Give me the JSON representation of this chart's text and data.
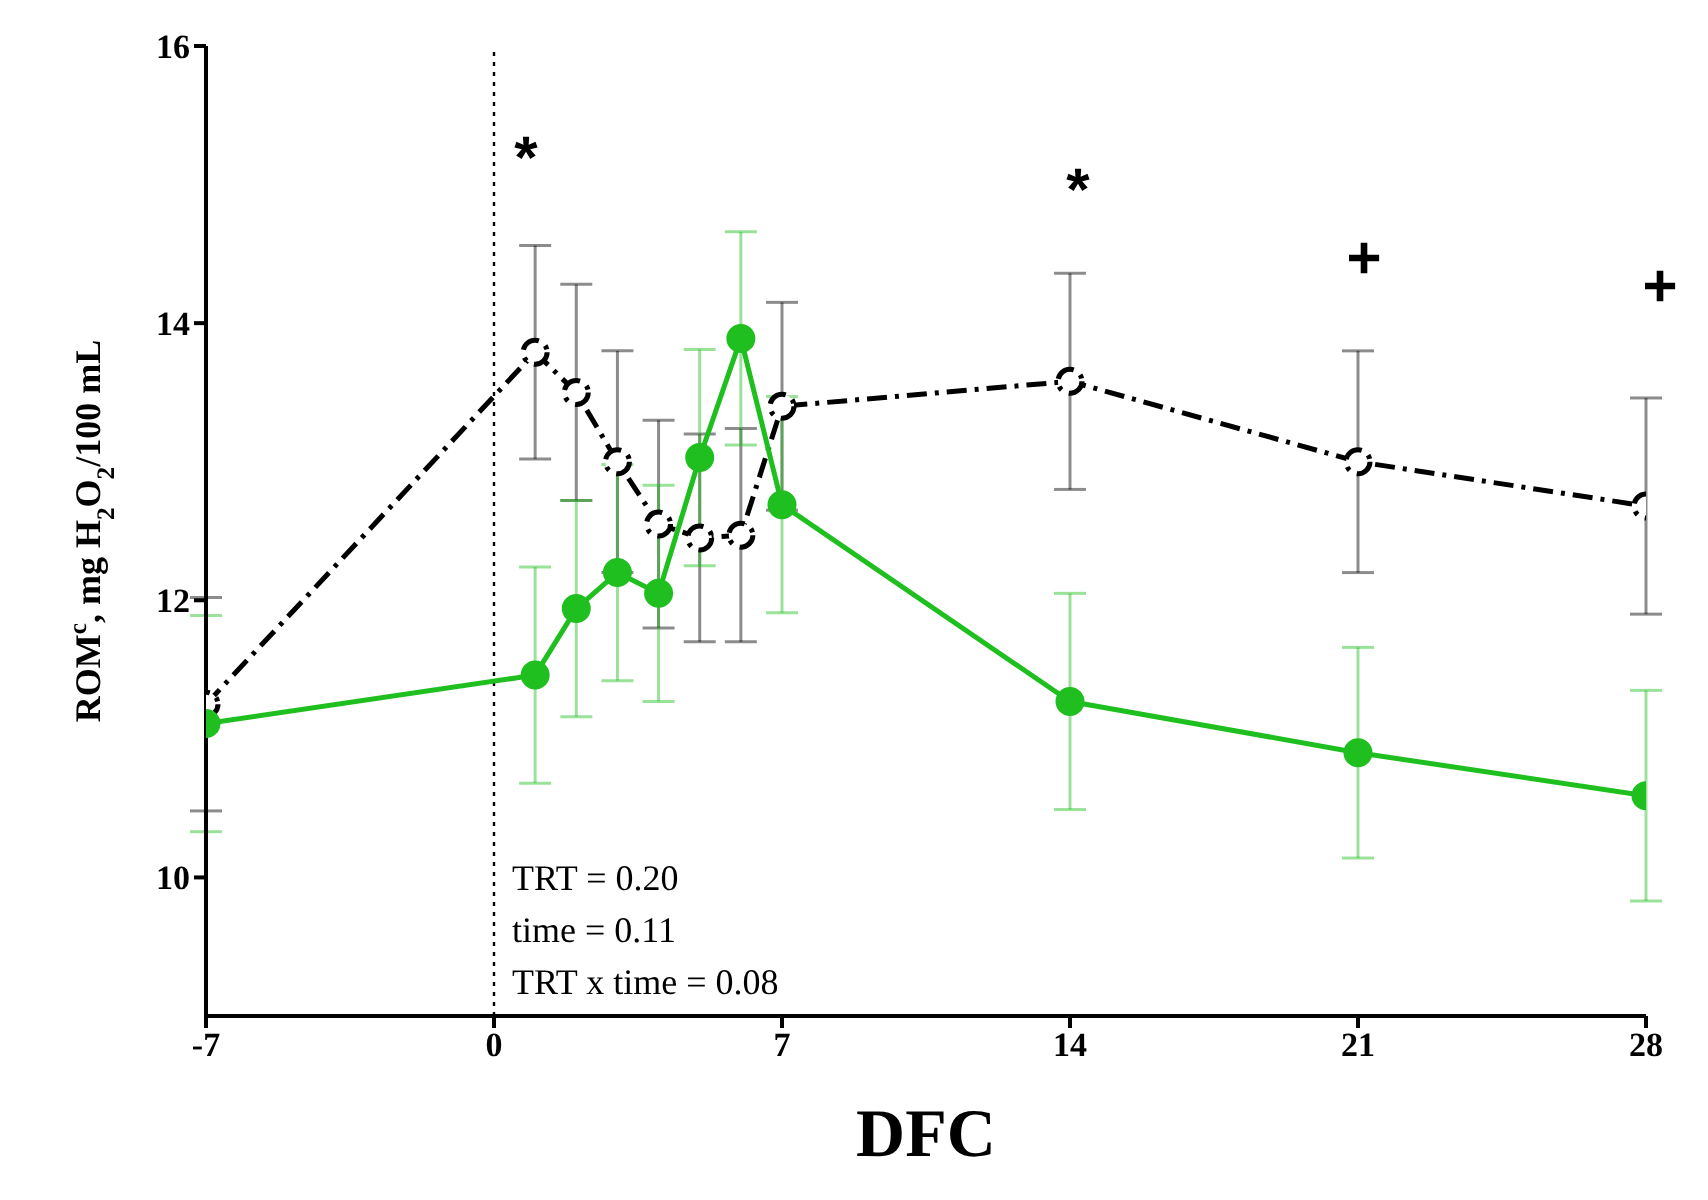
{
  "chart_data": {
    "type": "line",
    "xlabel": "DFC",
    "ylabel": "ROM$^{c}$, mg H$_{2}$O$_{2}$/100 mL",
    "x": [
      -7,
      1,
      2,
      3,
      4,
      5,
      6,
      7,
      14,
      21,
      28
    ],
    "series": [
      {
        "color": "#000000",
        "line_style": "dashed",
        "values": [
          11.25,
          13.79,
          13.5,
          13.0,
          12.55,
          12.45,
          12.47,
          13.4,
          13.58,
          13.0,
          12.68
        ],
        "errors": [
          0.77,
          0.77,
          0.78,
          0.8,
          0.75,
          0.75,
          0.77,
          0.75,
          0.78,
          0.8,
          0.78
        ]
      },
      {
        "color": "#1fbf1f",
        "line_style": "solid",
        "values": [
          11.11,
          11.46,
          11.94,
          12.2,
          12.05,
          13.03,
          13.89,
          12.69,
          11.27,
          10.9,
          10.59
        ],
        "errors": [
          0.78,
          0.78,
          0.78,
          0.78,
          0.78,
          0.78,
          0.77,
          0.78,
          0.78,
          0.76,
          0.76
        ]
      }
    ],
    "marker": "circle",
    "grid": false,
    "legend": false,
    "xlim": [
      -7,
      28
    ],
    "xticks": [
      -7,
      0,
      7,
      14,
      21,
      28
    ],
    "ylim": [
      9,
      16
    ],
    "yticks": [
      10,
      12,
      14,
      16
    ],
    "ref_lines": [
      {
        "axis": "x",
        "value": 0,
        "color": "#000000",
        "line_style": "dotted"
      }
    ],
    "annotations": [
      "*",
      "*",
      "+",
      "+",
      "TRT = 0.20",
      "time = 0.11",
      "TRT x time = 0.08"
    ]
  }
}
